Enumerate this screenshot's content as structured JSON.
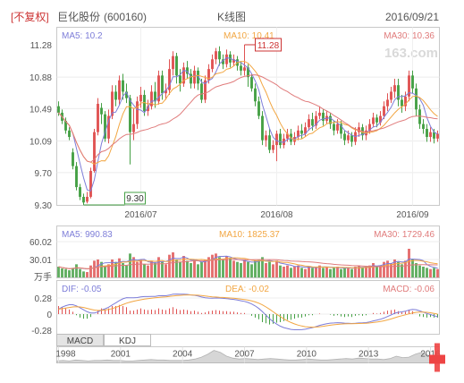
{
  "header": {
    "fq_label": "[不复权]",
    "stock_name": "巨化股份",
    "stock_code": "(600160)",
    "chart_name": "K线图",
    "date": "2016/09/21"
  },
  "watermark": "163.com",
  "colors": {
    "up": "#e05353",
    "down": "#45a045",
    "ma5": "#7d7dd8",
    "ma10": "#f2a642",
    "ma30": "#e07b7b",
    "dea": "#f2a642"
  },
  "chart_data": [
    {
      "type": "candlestick",
      "panel": "price",
      "title": "K线图",
      "y_ticks": [
        11.28,
        10.88,
        10.49,
        10.09,
        9.7,
        9.3
      ],
      "ylim": [
        9.3,
        11.28
      ],
      "x_tick_labels": [
        "2016/07",
        "2016/08",
        "2016/09"
      ],
      "x_tick_index": [
        23,
        61,
        99
      ],
      "legend": {
        "ma5": "MA5: 10.2",
        "ma10": "MA10: 10.41",
        "ma30": "MA30: 10.36"
      },
      "annotations": {
        "high": "11.28",
        "low": "9.30"
      },
      "high_index": 52,
      "low_index": 7,
      "candles": [
        [
          10.52,
          10.44,
          10.58,
          10.4
        ],
        [
          10.44,
          10.34,
          10.48,
          10.3
        ],
        [
          10.34,
          10.22,
          10.38,
          10.18
        ],
        [
          10.22,
          10.14,
          10.26,
          10.1
        ],
        [
          9.95,
          9.78,
          10.0,
          9.74
        ],
        [
          9.78,
          9.52,
          9.83,
          9.48
        ],
        [
          9.52,
          9.4,
          9.56,
          9.36
        ],
        [
          9.4,
          9.33,
          9.44,
          9.3
        ],
        [
          9.34,
          9.4,
          9.46,
          9.32
        ],
        [
          9.4,
          9.72,
          9.76,
          9.38
        ],
        [
          9.72,
          10.2,
          10.24,
          9.7
        ],
        [
          10.2,
          10.55,
          10.62,
          10.16
        ],
        [
          10.5,
          10.42,
          10.56,
          10.3
        ],
        [
          10.42,
          10.12,
          10.46,
          10.08
        ],
        [
          10.12,
          10.4,
          10.48,
          10.06
        ],
        [
          10.4,
          10.7,
          10.78,
          10.36
        ],
        [
          10.7,
          10.6,
          10.78,
          10.52
        ],
        [
          10.6,
          10.84,
          10.9,
          10.54
        ],
        [
          10.84,
          10.7,
          10.92,
          10.6
        ],
        [
          10.7,
          10.62,
          10.8,
          10.56
        ],
        [
          10.62,
          10.2,
          10.66,
          9.8
        ],
        [
          10.2,
          10.3,
          10.5,
          10.1
        ],
        [
          10.3,
          10.58,
          10.64,
          10.24
        ],
        [
          10.58,
          10.66,
          10.76,
          10.5
        ],
        [
          10.66,
          10.46,
          10.72,
          10.4
        ],
        [
          10.46,
          10.52,
          10.6,
          10.4
        ],
        [
          10.52,
          10.7,
          10.78,
          10.48
        ],
        [
          10.7,
          10.58,
          10.82,
          10.5
        ],
        [
          10.58,
          10.9,
          10.96,
          10.54
        ],
        [
          10.9,
          10.68,
          10.96,
          10.6
        ],
        [
          10.68,
          10.72,
          10.8,
          10.6
        ],
        [
          10.72,
          10.98,
          11.1,
          10.66
        ],
        [
          10.98,
          11.14,
          11.2,
          10.9
        ],
        [
          11.14,
          10.9,
          11.18,
          10.8
        ],
        [
          10.9,
          10.8,
          10.98,
          10.7
        ],
        [
          10.8,
          11.0,
          11.06,
          10.76
        ],
        [
          11.0,
          10.92,
          11.08,
          10.86
        ],
        [
          10.92,
          10.8,
          10.98,
          10.74
        ],
        [
          10.8,
          10.96,
          11.02,
          10.74
        ],
        [
          10.96,
          10.8,
          11.0,
          10.72
        ],
        [
          10.8,
          10.6,
          10.86,
          10.56
        ],
        [
          10.6,
          10.84,
          10.9,
          10.56
        ],
        [
          10.84,
          10.98,
          11.04,
          10.8
        ],
        [
          10.98,
          11.1,
          11.16,
          10.94
        ],
        [
          11.1,
          11.2,
          11.24,
          11.04
        ],
        [
          11.2,
          11.1,
          11.26,
          11.02
        ],
        [
          11.1,
          11.04,
          11.16,
          10.98
        ],
        [
          11.04,
          11.16,
          11.22,
          11.0
        ],
        [
          11.16,
          11.06,
          11.2,
          11.0
        ],
        [
          11.06,
          11.1,
          11.16,
          11.02
        ],
        [
          11.1,
          11.02,
          11.14,
          10.96
        ],
        [
          11.02,
          10.96,
          11.08,
          10.9
        ],
        [
          10.96,
          11.0,
          11.28,
          10.9
        ],
        [
          11.0,
          10.88,
          11.04,
          10.76
        ],
        [
          10.88,
          10.74,
          10.92,
          10.7
        ],
        [
          10.74,
          10.58,
          10.8,
          10.52
        ],
        [
          10.58,
          10.4,
          10.64,
          10.36
        ],
        [
          10.4,
          10.1,
          10.46,
          10.04
        ],
        [
          10.1,
          10.16,
          10.22,
          10.02
        ],
        [
          10.16,
          9.98,
          10.24,
          9.94
        ],
        [
          9.98,
          10.04,
          10.1,
          9.94
        ],
        [
          10.04,
          10.18,
          10.22,
          9.84
        ],
        [
          10.18,
          10.04,
          10.24,
          10.0
        ],
        [
          10.04,
          10.12,
          10.18,
          10.0
        ],
        [
          10.12,
          10.18,
          10.24,
          10.08
        ],
        [
          10.18,
          10.08,
          10.24,
          10.04
        ],
        [
          10.08,
          10.14,
          10.2,
          10.04
        ],
        [
          10.14,
          10.22,
          10.28,
          10.1
        ],
        [
          10.22,
          10.18,
          10.3,
          10.12
        ],
        [
          10.18,
          10.26,
          10.32,
          10.14
        ],
        [
          10.26,
          10.36,
          10.42,
          10.22
        ],
        [
          10.36,
          10.28,
          10.44,
          10.22
        ],
        [
          10.28,
          10.4,
          10.46,
          10.24
        ],
        [
          10.4,
          10.44,
          10.52,
          10.36
        ],
        [
          10.44,
          10.34,
          10.48,
          10.28
        ],
        [
          10.34,
          10.4,
          10.46,
          10.3
        ],
        [
          10.4,
          10.3,
          10.44,
          10.24
        ],
        [
          10.3,
          10.22,
          10.34,
          10.16
        ],
        [
          10.22,
          10.3,
          10.36,
          10.18
        ],
        [
          10.3,
          10.18,
          10.34,
          10.12
        ],
        [
          10.18,
          10.1,
          10.22,
          10.04
        ],
        [
          10.1,
          10.16,
          10.22,
          10.06
        ],
        [
          10.16,
          10.08,
          10.2,
          10.02
        ],
        [
          10.08,
          10.2,
          10.26,
          10.04
        ],
        [
          10.2,
          10.26,
          10.32,
          10.14
        ],
        [
          10.26,
          10.16,
          10.3,
          10.1
        ],
        [
          10.16,
          10.22,
          10.28,
          10.1
        ],
        [
          10.22,
          10.3,
          10.36,
          10.18
        ],
        [
          10.3,
          10.38,
          10.44,
          10.26
        ],
        [
          10.38,
          10.32,
          10.42,
          10.26
        ],
        [
          10.32,
          10.4,
          10.46,
          10.28
        ],
        [
          10.4,
          10.52,
          10.58,
          10.36
        ],
        [
          10.52,
          10.6,
          10.68,
          10.46
        ],
        [
          10.6,
          10.7,
          10.76,
          10.56
        ],
        [
          10.7,
          10.78,
          10.86,
          10.62
        ],
        [
          10.78,
          10.6,
          10.86,
          10.52
        ],
        [
          10.6,
          10.52,
          10.66,
          10.44
        ],
        [
          10.52,
          10.64,
          10.7,
          10.46
        ],
        [
          10.64,
          10.9,
          10.96,
          10.58
        ],
        [
          10.9,
          10.74,
          10.96,
          10.68
        ],
        [
          10.74,
          10.48,
          10.8,
          10.4
        ],
        [
          10.48,
          10.3,
          10.54,
          10.24
        ],
        [
          10.3,
          10.24,
          10.36,
          10.18
        ],
        [
          10.24,
          10.14,
          10.3,
          10.08
        ],
        [
          10.14,
          10.2,
          10.26,
          10.08
        ],
        [
          10.2,
          10.12,
          10.24,
          10.06
        ],
        [
          10.12,
          10.18,
          10.22,
          10.08
        ]
      ]
    },
    {
      "type": "bar",
      "panel": "volume",
      "y_ticks": [
        "60.02",
        "30.01",
        "万手"
      ],
      "ylim": [
        0,
        60.02
      ],
      "legend": {
        "ma5": "MA5: 990.83",
        "ma10": "MA10: 1825.37",
        "ma30": "MA30: 1729.46"
      },
      "values": [
        18,
        15,
        14,
        12,
        16,
        22,
        14,
        10,
        9,
        20,
        28,
        30,
        26,
        18,
        22,
        30,
        26,
        32,
        24,
        20,
        40,
        34,
        26,
        30,
        22,
        20,
        28,
        24,
        34,
        26,
        22,
        38,
        42,
        30,
        26,
        36,
        28,
        24,
        30,
        22,
        26,
        30,
        34,
        38,
        40,
        34,
        30,
        36,
        32,
        28,
        26,
        24,
        30,
        26,
        22,
        28,
        30,
        34,
        24,
        26,
        22,
        28,
        20,
        18,
        20,
        16,
        18,
        20,
        16,
        14,
        18,
        16,
        18,
        20,
        16,
        18,
        14,
        16,
        18,
        14,
        16,
        16,
        14,
        18,
        20,
        16,
        18,
        20,
        24,
        18,
        20,
        26,
        28,
        24,
        30,
        26,
        22,
        28,
        48,
        30,
        24,
        20,
        18,
        16,
        14,
        16,
        14
      ]
    },
    {
      "type": "bar",
      "panel": "macd",
      "y_ticks": [
        "0.28",
        "0",
        "-0.28"
      ],
      "ylim": [
        -0.28,
        0.28
      ],
      "legend": {
        "dif": "DIF: -0.05",
        "dea": "DEA: -0.02",
        "macd": "MACD: -0.06"
      },
      "values": [
        0.14,
        0.12,
        0.1,
        0.08,
        0.04,
        -0.02,
        -0.06,
        -0.08,
        -0.08,
        -0.05,
        0.0,
        0.06,
        0.1,
        0.08,
        0.1,
        0.14,
        0.14,
        0.16,
        0.14,
        0.12,
        0.06,
        0.06,
        0.08,
        0.1,
        0.08,
        0.07,
        0.08,
        0.07,
        0.1,
        0.08,
        0.07,
        0.1,
        0.12,
        0.09,
        0.07,
        0.08,
        0.07,
        0.05,
        0.06,
        0.04,
        0.02,
        0.03,
        0.05,
        0.06,
        0.07,
        0.06,
        0.05,
        0.05,
        0.04,
        0.04,
        0.03,
        0.02,
        0.02,
        0.0,
        -0.03,
        -0.06,
        -0.09,
        -0.14,
        -0.16,
        -0.18,
        -0.17,
        -0.15,
        -0.14,
        -0.12,
        -0.1,
        -0.1,
        -0.08,
        -0.06,
        -0.06,
        -0.04,
        -0.02,
        -0.02,
        0.0,
        0.01,
        0.0,
        0.0,
        -0.01,
        -0.03,
        -0.02,
        -0.04,
        -0.05,
        -0.04,
        -0.05,
        -0.03,
        -0.02,
        -0.03,
        -0.02,
        0.0,
        0.02,
        0.01,
        0.02,
        0.04,
        0.06,
        0.07,
        0.08,
        0.05,
        0.03,
        0.04,
        0.07,
        0.05,
        0.0,
        -0.04,
        -0.05,
        -0.06,
        -0.05,
        -0.06,
        -0.06
      ]
    },
    {
      "type": "area",
      "panel": "overview",
      "x_tick_labels": [
        "1998",
        "2001",
        "2004",
        "2007",
        "2010",
        "2013",
        "2016"
      ],
      "values": [
        4,
        5,
        4,
        6,
        5,
        4,
        5,
        5,
        6,
        5,
        5,
        4,
        4,
        5,
        6,
        7,
        6,
        6,
        5,
        5,
        5,
        6,
        8,
        12,
        18,
        26,
        22,
        14,
        10,
        8,
        9,
        8,
        7,
        8,
        9,
        8,
        7,
        6,
        6,
        7,
        8,
        7,
        6,
        6,
        7,
        8,
        9,
        8,
        10,
        9,
        8,
        8,
        7,
        9,
        14,
        11,
        12,
        18,
        22,
        16,
        13
      ]
    }
  ],
  "tabs": [
    {
      "label": "MACD",
      "active": true
    },
    {
      "label": "KDJ",
      "active": false
    }
  ]
}
